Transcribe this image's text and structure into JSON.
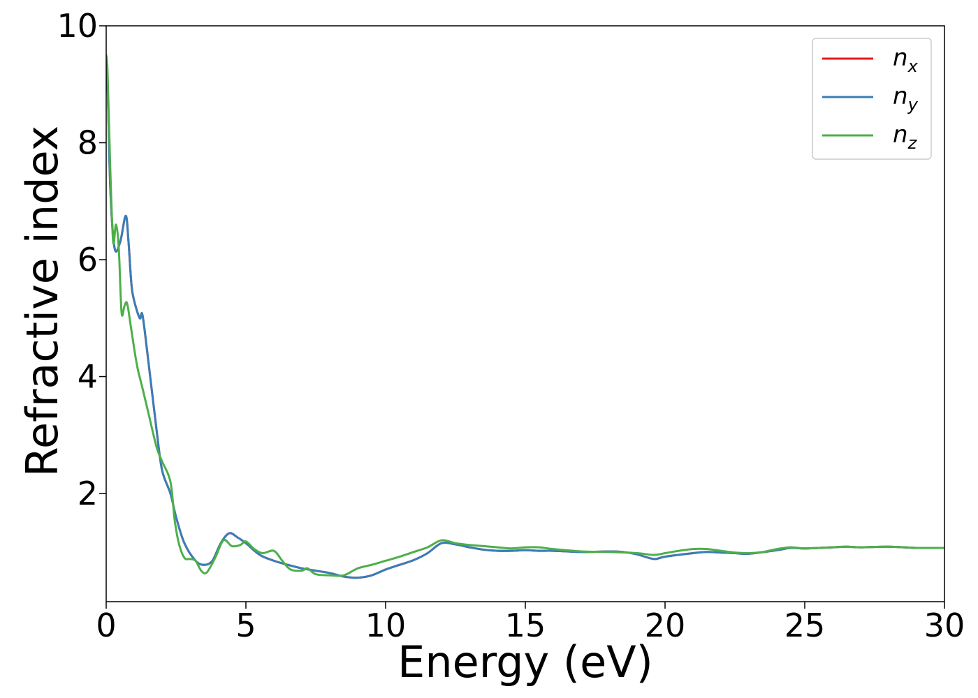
{
  "chart_data": {
    "type": "line",
    "title": "",
    "xlabel": "Energy (eV)",
    "ylabel": "Refractive index",
    "xlim": [
      0,
      30
    ],
    "ylim": [
      0.15,
      10
    ],
    "xticks": [
      0,
      5,
      10,
      15,
      20,
      25,
      30
    ],
    "xtick_labels": [
      "0",
      "5",
      "10",
      "15",
      "20",
      "25",
      "30"
    ],
    "yticks": [
      2,
      4,
      6,
      8,
      10
    ],
    "ytick_labels": [
      "2",
      "4",
      "6",
      "8",
      "10"
    ],
    "grid": false,
    "legend_position": "top-right",
    "series": [
      {
        "name": "n_x",
        "legend_base": "n",
        "legend_sub": "x",
        "color": "#e41a1c",
        "x": [
          0,
          0.05,
          0.15,
          0.3,
          0.5,
          0.7,
          0.8,
          0.9,
          1.0,
          1.2,
          1.3,
          1.5,
          1.8,
          2.0,
          2.3,
          2.5,
          2.8,
          3.2,
          3.5,
          3.8,
          4.1,
          4.4,
          4.7,
          5.0,
          5.5,
          6.0,
          6.5,
          7.0,
          7.5,
          8.0,
          8.5,
          9.0,
          9.5,
          10.0,
          10.5,
          11.0,
          11.5,
          12.0,
          12.5,
          13.0,
          13.5,
          14.0,
          14.5,
          15.0,
          15.5,
          16.0,
          17.0,
          18.0,
          18.5,
          19.0,
          19.6,
          20.0,
          21.0,
          21.5,
          22.0,
          22.5,
          23.0,
          24.0,
          24.5,
          25.0,
          25.5,
          26.0,
          26.5,
          27.0,
          28.0,
          29.0,
          30.0
        ],
        "y": [
          9.5,
          9.0,
          7.2,
          6.2,
          6.3,
          6.75,
          6.3,
          5.6,
          5.3,
          5.0,
          5.05,
          4.3,
          3.1,
          2.4,
          2.0,
          1.6,
          1.15,
          0.85,
          0.78,
          0.85,
          1.15,
          1.32,
          1.25,
          1.15,
          0.95,
          0.85,
          0.78,
          0.72,
          0.68,
          0.64,
          0.58,
          0.56,
          0.6,
          0.7,
          0.78,
          0.86,
          0.98,
          1.15,
          1.13,
          1.08,
          1.04,
          1.02,
          1.02,
          1.03,
          1.02,
          1.02,
          1.0,
          1.01,
          1.0,
          0.96,
          0.88,
          0.92,
          0.98,
          1.0,
          0.99,
          0.98,
          0.97,
          1.03,
          1.07,
          1.06,
          1.07,
          1.08,
          1.09,
          1.08,
          1.09,
          1.07,
          1.07
        ]
      },
      {
        "name": "n_y",
        "legend_base": "n",
        "legend_sub": "y",
        "color": "#377eb8",
        "x": [
          0,
          0.05,
          0.15,
          0.3,
          0.5,
          0.7,
          0.8,
          0.9,
          1.0,
          1.2,
          1.3,
          1.5,
          1.8,
          2.0,
          2.3,
          2.5,
          2.8,
          3.2,
          3.5,
          3.8,
          4.1,
          4.4,
          4.7,
          5.0,
          5.5,
          6.0,
          6.5,
          7.0,
          7.5,
          8.0,
          8.5,
          9.0,
          9.5,
          10.0,
          10.5,
          11.0,
          11.5,
          12.0,
          12.5,
          13.0,
          13.5,
          14.0,
          14.5,
          15.0,
          15.5,
          16.0,
          17.0,
          18.0,
          18.5,
          19.0,
          19.6,
          20.0,
          21.0,
          21.5,
          22.0,
          22.5,
          23.0,
          24.0,
          24.5,
          25.0,
          25.5,
          26.0,
          26.5,
          27.0,
          28.0,
          29.0,
          30.0
        ],
        "y": [
          9.5,
          9.0,
          7.2,
          6.2,
          6.3,
          6.75,
          6.3,
          5.6,
          5.3,
          5.0,
          5.05,
          4.3,
          3.1,
          2.4,
          2.0,
          1.6,
          1.15,
          0.85,
          0.78,
          0.85,
          1.15,
          1.32,
          1.25,
          1.15,
          0.95,
          0.85,
          0.78,
          0.72,
          0.68,
          0.64,
          0.58,
          0.56,
          0.6,
          0.7,
          0.78,
          0.86,
          0.98,
          1.15,
          1.13,
          1.08,
          1.04,
          1.02,
          1.02,
          1.03,
          1.02,
          1.02,
          1.0,
          1.01,
          1.0,
          0.96,
          0.88,
          0.92,
          0.98,
          1.0,
          0.99,
          0.98,
          0.97,
          1.03,
          1.07,
          1.06,
          1.07,
          1.08,
          1.09,
          1.08,
          1.09,
          1.07,
          1.07
        ]
      },
      {
        "name": "n_z",
        "legend_base": "n",
        "legend_sub": "z",
        "color": "#4daf4a",
        "x": [
          0,
          0.05,
          0.15,
          0.25,
          0.35,
          0.45,
          0.55,
          0.65,
          0.75,
          0.9,
          1.1,
          1.3,
          1.5,
          1.8,
          2.0,
          2.3,
          2.45,
          2.6,
          2.8,
          3.0,
          3.2,
          3.4,
          3.6,
          3.9,
          4.2,
          4.5,
          4.8,
          5.0,
          5.3,
          5.6,
          6.0,
          6.3,
          6.6,
          7.0,
          7.2,
          7.5,
          8.0,
          8.5,
          9.0,
          9.5,
          10.0,
          10.5,
          11.0,
          11.5,
          12.0,
          12.5,
          13.0,
          13.5,
          14.0,
          14.5,
          15.0,
          15.5,
          16.0,
          17.0,
          18.0,
          19.0,
          19.6,
          20.0,
          20.5,
          21.0,
          21.5,
          22.0,
          22.5,
          23.0,
          23.5,
          24.0,
          24.5,
          25.0,
          25.5,
          26.0,
          26.5,
          27.0,
          28.0,
          29.0,
          30.0
        ],
        "y": [
          9.5,
          9.2,
          7.5,
          6.3,
          6.6,
          6.2,
          5.1,
          5.2,
          5.25,
          4.8,
          4.2,
          3.8,
          3.4,
          2.8,
          2.55,
          2.2,
          1.55,
          1.15,
          0.9,
          0.88,
          0.85,
          0.68,
          0.65,
          0.9,
          1.2,
          1.1,
          1.12,
          1.18,
          1.05,
          0.98,
          1.02,
          0.85,
          0.7,
          0.68,
          0.72,
          0.62,
          0.6,
          0.6,
          0.72,
          0.78,
          0.85,
          0.92,
          1.0,
          1.08,
          1.2,
          1.15,
          1.12,
          1.1,
          1.08,
          1.06,
          1.08,
          1.08,
          1.05,
          1.01,
          1.0,
          0.98,
          0.95,
          0.98,
          1.02,
          1.05,
          1.05,
          1.02,
          0.99,
          0.98,
          1.0,
          1.05,
          1.08,
          1.06,
          1.07,
          1.08,
          1.09,
          1.08,
          1.09,
          1.07,
          1.07
        ]
      }
    ]
  }
}
